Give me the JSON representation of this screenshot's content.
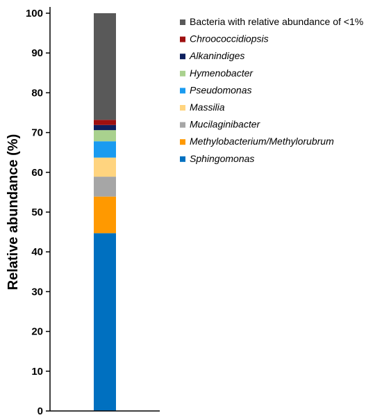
{
  "chart_data": {
    "type": "bar",
    "stacked": true,
    "categories": [
      ""
    ],
    "ylabel": "Relative abundance (%)",
    "xlabel": "",
    "ylim": [
      0,
      100
    ],
    "yticks": [
      0,
      10,
      20,
      30,
      40,
      50,
      60,
      70,
      80,
      90,
      100
    ],
    "legend_position": "top-right",
    "series": [
      {
        "name": "Sphingomonas",
        "values": [
          44.7
        ],
        "color": "#0070C0",
        "italic": true
      },
      {
        "name": "Methylobacterium/Methylorubrum",
        "values": [
          9.2
        ],
        "color": "#FF9900",
        "italic": true
      },
      {
        "name": "Mucilaginibacter",
        "values": [
          5.0
        ],
        "color": "#A6A6A6",
        "italic": true
      },
      {
        "name": "Massilia",
        "values": [
          4.8
        ],
        "color": "#FFD47F",
        "italic": true
      },
      {
        "name": "Pseudomonas",
        "values": [
          4.1
        ],
        "color": "#1A9BF0",
        "italic": true
      },
      {
        "name": "Hymenobacter",
        "values": [
          2.8
        ],
        "color": "#A9D18E",
        "italic": true
      },
      {
        "name": "Alkanindiges",
        "values": [
          1.3
        ],
        "color": "#0D1F5E",
        "italic": true
      },
      {
        "name": "Chroococcidiopsis",
        "values": [
          1.3
        ],
        "color": "#9E1010",
        "italic": true
      },
      {
        "name": "Bacteria with relative abundance of <1%",
        "values": [
          26.8
        ],
        "color": "#595959",
        "italic": false
      }
    ]
  }
}
